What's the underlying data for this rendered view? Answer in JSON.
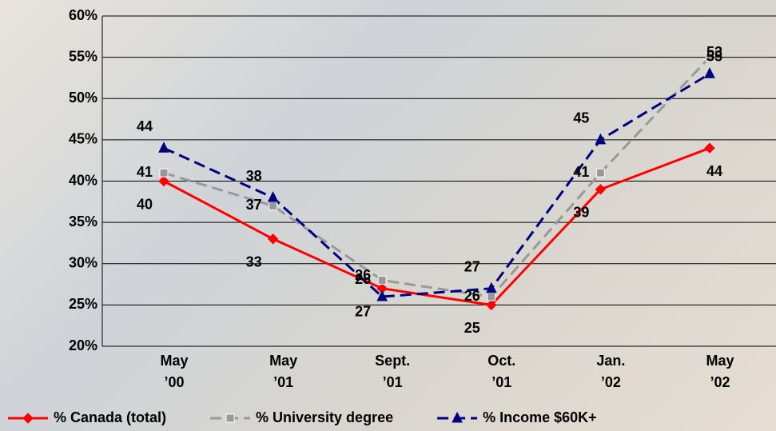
{
  "chart_data": {
    "type": "line",
    "categories": [
      "May\n’00",
      "May\n’01",
      "Sept.\n’01",
      "Oct.\n’01",
      "Jan.\n’02",
      "May\n’02"
    ],
    "series": [
      {
        "name": "% Canada (total)",
        "color": "#ff0000",
        "marker": "diamond",
        "dashed": false,
        "values": [
          40,
          33,
          27,
          25,
          39,
          44
        ]
      },
      {
        "name": "% University degree",
        "color": "#999999",
        "marker": "square",
        "dashed": true,
        "values": [
          41,
          37,
          28,
          26,
          41,
          55
        ]
      },
      {
        "name": "% Income $60K+",
        "color": "#000080",
        "marker": "triangle",
        "dashed": true,
        "values": [
          44,
          38,
          26,
          27,
          45,
          53
        ]
      }
    ],
    "ylim": [
      20,
      60
    ],
    "yticks": [
      {
        "value": 20,
        "label": "20%"
      },
      {
        "value": 25,
        "label": "25%"
      },
      {
        "value": 30,
        "label": "30%"
      },
      {
        "value": 35,
        "label": "35%"
      },
      {
        "value": 40,
        "label": "40%"
      },
      {
        "value": 45,
        "label": "45%"
      },
      {
        "value": 50,
        "label": "50%"
      },
      {
        "value": 55,
        "label": "55%"
      },
      {
        "value": 60,
        "label": "60%"
      }
    ],
    "grid": true,
    "legend": "bottom"
  }
}
